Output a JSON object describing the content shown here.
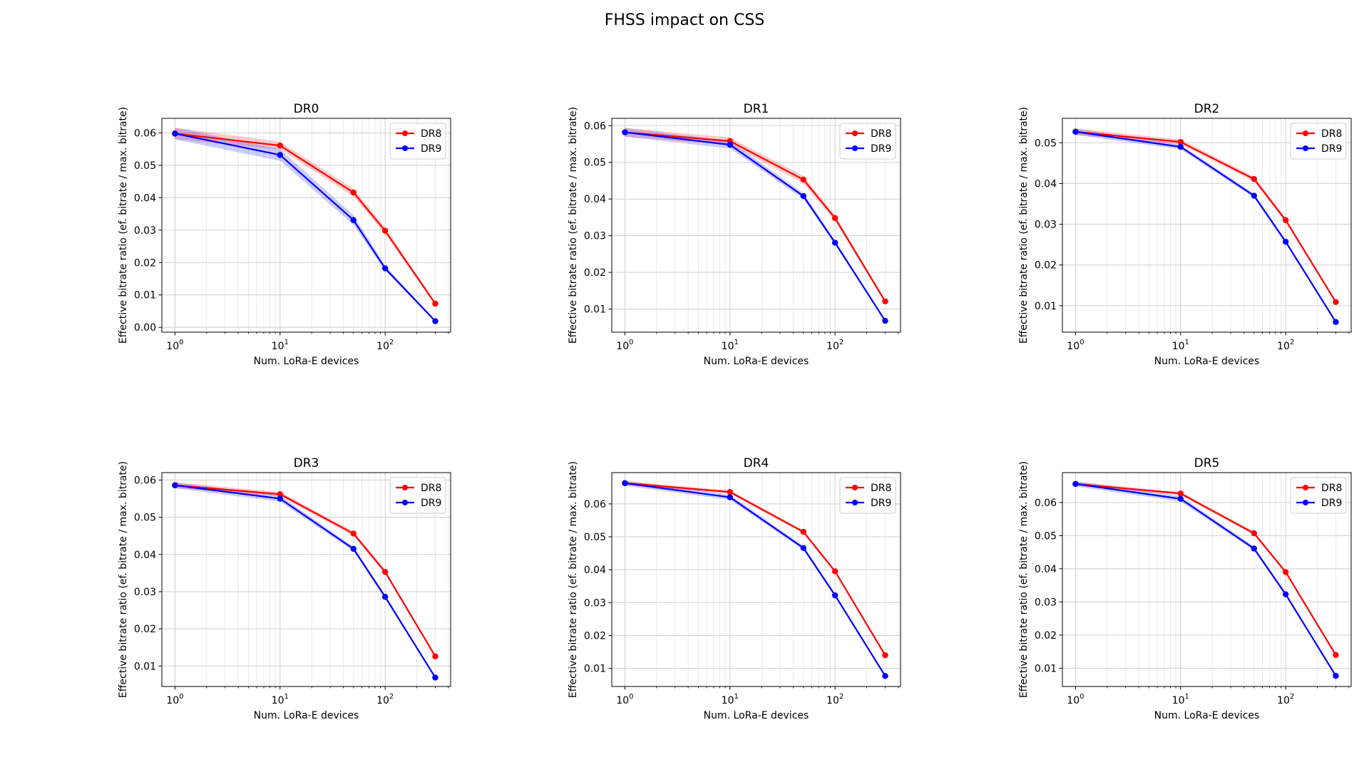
{
  "figure": {
    "title": "FHSS impact on CSS"
  },
  "chart_data": [
    {
      "type": "line",
      "title": "DR0",
      "xlabel": "Num. LoRa-E devices",
      "ylabel": "Effective bitrate ratio (ef. bitrate / max. bitrate)",
      "xscale": "log",
      "xlim": [
        0.75,
        420
      ],
      "ylim": [
        -0.0015,
        0.0645
      ],
      "yticks": [
        0.0,
        0.01,
        0.02,
        0.03,
        0.04,
        0.05,
        0.06
      ],
      "ytick_labels": [
        "0.00",
        "0.01",
        "0.02",
        "0.03",
        "0.04",
        "0.05",
        "0.06"
      ],
      "x": [
        1,
        10,
        50,
        100,
        300
      ],
      "grid": true,
      "legend": "upper right",
      "series": [
        {
          "name": "DR8",
          "color": "#ff0000",
          "values": [
            0.0598,
            0.0561,
            0.0416,
            0.0298,
            0.0073
          ],
          "band": [
            0.0018,
            0.0012,
            0.0012,
            0.001,
            0.0004
          ]
        },
        {
          "name": "DR9",
          "color": "#0000ff",
          "values": [
            0.0598,
            0.0532,
            0.0331,
            0.0182,
            0.0019
          ],
          "band": [
            0.0018,
            0.0018,
            0.0015,
            0.0008,
            0.0003
          ]
        }
      ]
    },
    {
      "type": "line",
      "title": "DR1",
      "xlabel": "Num. LoRa-E devices",
      "ylabel": "Effective bitrate ratio (ef. bitrate / max. bitrate)",
      "xscale": "log",
      "xlim": [
        0.75,
        420
      ],
      "ylim": [
        0.0037,
        0.062
      ],
      "yticks": [
        0.01,
        0.02,
        0.03,
        0.04,
        0.05,
        0.06
      ],
      "ytick_labels": [
        "0.01",
        "0.02",
        "0.03",
        "0.04",
        "0.05",
        "0.06"
      ],
      "x": [
        1,
        10,
        50,
        100,
        300
      ],
      "grid": true,
      "legend": "upper right",
      "series": [
        {
          "name": "DR8",
          "color": "#ff0000",
          "values": [
            0.0582,
            0.0558,
            0.0453,
            0.0348,
            0.0121
          ],
          "band": [
            0.0012,
            0.001,
            0.001,
            0.0008,
            0.0004
          ]
        },
        {
          "name": "DR9",
          "color": "#0000ff",
          "values": [
            0.0582,
            0.0548,
            0.0408,
            0.0281,
            0.0068
          ],
          "band": [
            0.0012,
            0.001,
            0.0008,
            0.0006,
            0.0003
          ]
        }
      ]
    },
    {
      "type": "line",
      "title": "DR2",
      "xlabel": "Num. LoRa-E devices",
      "ylabel": "Effective bitrate ratio (ef. bitrate / max. bitrate)",
      "xscale": "log",
      "xlim": [
        0.75,
        420
      ],
      "ylim": [
        0.0035,
        0.056
      ],
      "yticks": [
        0.01,
        0.02,
        0.03,
        0.04,
        0.05
      ],
      "ytick_labels": [
        "0.01",
        "0.02",
        "0.03",
        "0.04",
        "0.05"
      ],
      "x": [
        1,
        10,
        50,
        100,
        300
      ],
      "grid": true,
      "legend": "upper right",
      "series": [
        {
          "name": "DR8",
          "color": "#ff0000",
          "values": [
            0.0527,
            0.0502,
            0.0411,
            0.031,
            0.0109
          ],
          "band": [
            0.0008,
            0.0006,
            0.0006,
            0.0005,
            0.0003
          ]
        },
        {
          "name": "DR9",
          "color": "#0000ff",
          "values": [
            0.0527,
            0.049,
            0.037,
            0.0257,
            0.006
          ],
          "band": [
            0.0008,
            0.0006,
            0.0005,
            0.0004,
            0.0002
          ]
        }
      ]
    },
    {
      "type": "line",
      "title": "DR3",
      "xlabel": "Num. LoRa-E devices",
      "ylabel": "Effective bitrate ratio (ef. bitrate / max. bitrate)",
      "xscale": "log",
      "xlim": [
        0.75,
        420
      ],
      "ylim": [
        0.0045,
        0.062
      ],
      "yticks": [
        0.01,
        0.02,
        0.03,
        0.04,
        0.05,
        0.06
      ],
      "ytick_labels": [
        "0.01",
        "0.02",
        "0.03",
        "0.04",
        "0.05",
        "0.06"
      ],
      "x": [
        1,
        10,
        50,
        100,
        300
      ],
      "grid": true,
      "legend": "upper right",
      "series": [
        {
          "name": "DR8",
          "color": "#ff0000",
          "values": [
            0.0586,
            0.0562,
            0.0456,
            0.0353,
            0.0126
          ],
          "band": [
            0.0008,
            0.0006,
            0.0006,
            0.0005,
            0.0003
          ]
        },
        {
          "name": "DR9",
          "color": "#0000ff",
          "values": [
            0.0586,
            0.055,
            0.0415,
            0.0286,
            0.0069
          ],
          "band": [
            0.0008,
            0.0008,
            0.0006,
            0.0005,
            0.0003
          ]
        }
      ]
    },
    {
      "type": "line",
      "title": "DR4",
      "xlabel": "Num. LoRa-E devices",
      "ylabel": "Effective bitrate ratio (ef. bitrate / max. bitrate)",
      "xscale": "log",
      "xlim": [
        0.75,
        420
      ],
      "ylim": [
        0.0045,
        0.0695
      ],
      "yticks": [
        0.01,
        0.02,
        0.03,
        0.04,
        0.05,
        0.06
      ],
      "ytick_labels": [
        "0.01",
        "0.02",
        "0.03",
        "0.04",
        "0.05",
        "0.06"
      ],
      "x": [
        1,
        10,
        50,
        100,
        300
      ],
      "grid": true,
      "legend": "upper right",
      "series": [
        {
          "name": "DR8",
          "color": "#ff0000",
          "values": [
            0.0663,
            0.0636,
            0.0515,
            0.0395,
            0.014
          ],
          "band": [
            0.0006,
            0.0005,
            0.0005,
            0.0004,
            0.0003
          ]
        },
        {
          "name": "DR9",
          "color": "#0000ff",
          "values": [
            0.0663,
            0.062,
            0.0466,
            0.0322,
            0.0077
          ],
          "band": [
            0.0008,
            0.0008,
            0.0006,
            0.0005,
            0.0003
          ]
        }
      ]
    },
    {
      "type": "line",
      "title": "DR5",
      "xlabel": "Num. LoRa-E devices",
      "ylabel": "Effective bitrate ratio (ef. bitrate / max. bitrate)",
      "xscale": "log",
      "xlim": [
        0.75,
        420
      ],
      "ylim": [
        0.0045,
        0.069
      ],
      "yticks": [
        0.01,
        0.02,
        0.03,
        0.04,
        0.05,
        0.06
      ],
      "ytick_labels": [
        "0.01",
        "0.02",
        "0.03",
        "0.04",
        "0.05",
        "0.06"
      ],
      "x": [
        1,
        10,
        50,
        100,
        300
      ],
      "grid": true,
      "legend": "upper right",
      "series": [
        {
          "name": "DR8",
          "color": "#ff0000",
          "values": [
            0.0656,
            0.0627,
            0.0507,
            0.039,
            0.014
          ],
          "band": [
            0.0006,
            0.0005,
            0.0005,
            0.0004,
            0.0003
          ]
        },
        {
          "name": "DR9",
          "color": "#0000ff",
          "values": [
            0.0656,
            0.0611,
            0.0461,
            0.0323,
            0.0077
          ],
          "band": [
            0.0008,
            0.0008,
            0.0006,
            0.0005,
            0.0003
          ]
        }
      ]
    }
  ],
  "xtick_labels": [
    {
      "base": "10",
      "exp": "0",
      "value": 1
    },
    {
      "base": "10",
      "exp": "1",
      "value": 10
    },
    {
      "base": "10",
      "exp": "2",
      "value": 100
    }
  ]
}
